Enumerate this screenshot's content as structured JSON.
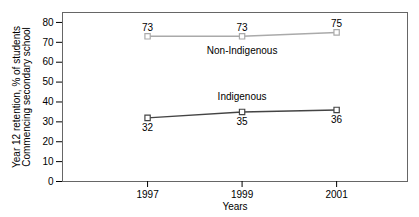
{
  "chart_data": {
    "type": "line",
    "x": [
      1997,
      1999,
      2001
    ],
    "series": [
      {
        "name": "Non-Indigenous",
        "color": "#aaaaaa",
        "values": [
          73,
          73,
          75
        ]
      },
      {
        "name": "Indigenous",
        "color": "#444444",
        "values": [
          32,
          35,
          36
        ]
      }
    ],
    "xlabel": "Years",
    "ylabel": "Year 12 retention, % of students\nCommencing secondary school",
    "xlim": [
      1995.2,
      2002.5
    ],
    "xticks": [
      1997,
      1999,
      2001
    ],
    "ylim": [
      0,
      85
    ],
    "yticks": [
      0,
      10,
      20,
      30,
      40,
      50,
      60,
      70,
      80
    ],
    "marker": "square",
    "data_labels": true,
    "grid": false
  }
}
